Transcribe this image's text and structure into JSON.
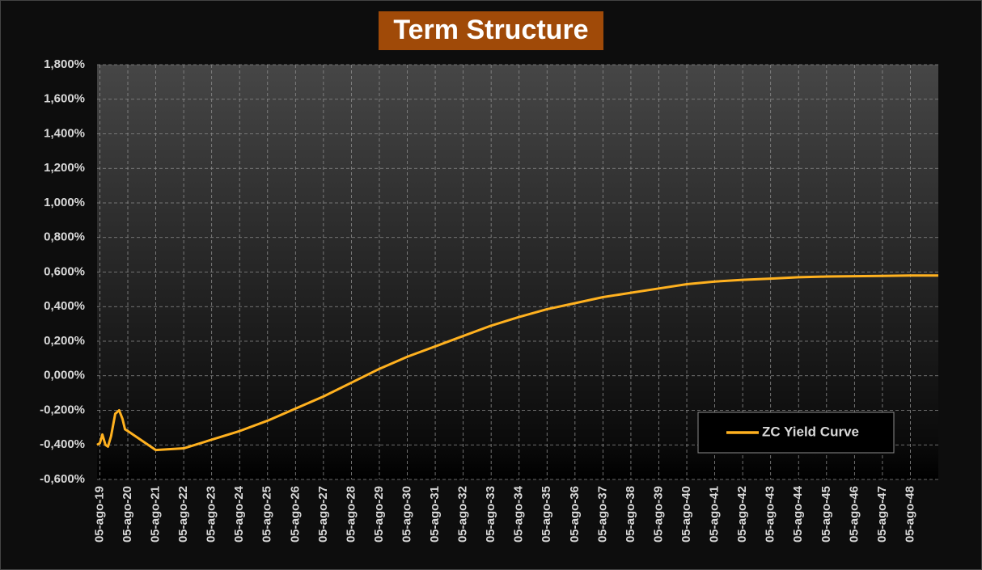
{
  "chart_data": {
    "type": "line",
    "title": "Term Structure",
    "x": [
      18.9,
      19.0,
      19.09,
      19.2,
      19.29,
      19.4,
      19.55,
      19.69,
      19.81,
      19.9,
      20.0,
      21,
      22,
      23,
      24,
      25,
      26,
      27,
      28,
      29,
      30,
      31,
      32,
      33,
      34,
      35,
      36,
      37,
      38,
      39,
      40,
      41,
      42,
      43,
      44,
      45,
      46,
      47,
      48,
      49
    ],
    "series": [
      {
        "name": "ZC Yield Curve",
        "color": "#ffb11f",
        "values": [
          -0.4,
          -0.39,
          -0.34,
          -0.4,
          -0.41,
          -0.35,
          -0.22,
          -0.2,
          -0.25,
          -0.31,
          -0.32,
          -0.43,
          -0.42,
          -0.37,
          -0.32,
          -0.26,
          -0.19,
          -0.12,
          -0.04,
          0.04,
          0.11,
          0.17,
          0.23,
          0.29,
          0.34,
          0.385,
          0.42,
          0.455,
          0.48,
          0.505,
          0.53,
          0.545,
          0.555,
          0.562,
          0.57,
          0.574,
          0.576,
          0.578,
          0.58,
          0.58
        ]
      }
    ],
    "xlim": [
      18.9,
      49
    ],
    "xticks": [
      {
        "value": 19,
        "label": "05-ago-19"
      },
      {
        "value": 20,
        "label": "05-ago-20"
      },
      {
        "value": 21,
        "label": "05-ago-21"
      },
      {
        "value": 22,
        "label": "05-ago-22"
      },
      {
        "value": 23,
        "label": "05-ago-23"
      },
      {
        "value": 24,
        "label": "05-ago-24"
      },
      {
        "value": 25,
        "label": "05-ago-25"
      },
      {
        "value": 26,
        "label": "05-ago-26"
      },
      {
        "value": 27,
        "label": "05-ago-27"
      },
      {
        "value": 28,
        "label": "05-ago-28"
      },
      {
        "value": 29,
        "label": "05-ago-29"
      },
      {
        "value": 30,
        "label": "05-ago-30"
      },
      {
        "value": 31,
        "label": "05-ago-31"
      },
      {
        "value": 32,
        "label": "05-ago-32"
      },
      {
        "value": 33,
        "label": "05-ago-33"
      },
      {
        "value": 34,
        "label": "05-ago-34"
      },
      {
        "value": 35,
        "label": "05-ago-35"
      },
      {
        "value": 36,
        "label": "05-ago-36"
      },
      {
        "value": 37,
        "label": "05-ago-37"
      },
      {
        "value": 38,
        "label": "05-ago-38"
      },
      {
        "value": 39,
        "label": "05-ago-39"
      },
      {
        "value": 40,
        "label": "05-ago-40"
      },
      {
        "value": 41,
        "label": "05-ago-41"
      },
      {
        "value": 42,
        "label": "05-ago-42"
      },
      {
        "value": 43,
        "label": "05-ago-43"
      },
      {
        "value": 44,
        "label": "05-ago-44"
      },
      {
        "value": 45,
        "label": "05-ago-45"
      },
      {
        "value": 46,
        "label": "05-ago-46"
      },
      {
        "value": 47,
        "label": "05-ago-47"
      },
      {
        "value": 48,
        "label": "05-ago-48"
      }
    ],
    "ylim": [
      -0.6,
      1.8
    ],
    "yticks": [
      {
        "value": -0.6,
        "label": "-0,600%"
      },
      {
        "value": -0.4,
        "label": "-0,400%"
      },
      {
        "value": -0.2,
        "label": "-0,200%"
      },
      {
        "value": 0,
        "label": "0,000%"
      },
      {
        "value": 0.2,
        "label": "0,200%"
      },
      {
        "value": 0.4,
        "label": "0,400%"
      },
      {
        "value": 0.6,
        "label": "0,600%"
      },
      {
        "value": 0.8,
        "label": "0,800%"
      },
      {
        "value": 1.0,
        "label": "1,000%"
      },
      {
        "value": 1.2,
        "label": "1,200%"
      },
      {
        "value": 1.4,
        "label": "1,400%"
      },
      {
        "value": 1.6,
        "label": "1,600%"
      },
      {
        "value": 1.8,
        "label": "1,800%"
      }
    ],
    "grid": true,
    "legend": "lower right"
  }
}
